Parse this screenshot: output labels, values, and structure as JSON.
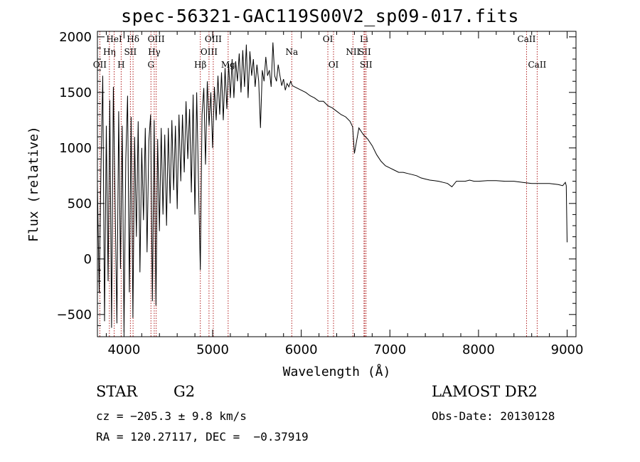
{
  "title": "spec-56321-GAC119S00V2_sp09-017.fits",
  "chart_data": {
    "type": "line",
    "xlabel": "Wavelength (Å)",
    "ylabel": "Flux (relative)",
    "xlim": [
      3700,
      9100
    ],
    "ylim": [
      -700,
      2050
    ],
    "xticks": [
      4000,
      5000,
      6000,
      7000,
      8000,
      9000
    ],
    "yticks": [
      -500,
      0,
      500,
      1000,
      1500,
      2000
    ],
    "grid": false,
    "line_color": "#000000",
    "marker_color": "#b22222",
    "series": [
      {
        "x": [
          3700,
          3720,
          3740,
          3760,
          3780,
          3800,
          3820,
          3840,
          3860,
          3880,
          3900,
          3920,
          3940,
          3960,
          3980,
          4000,
          4020,
          4040,
          4060,
          4080,
          4100,
          4120,
          4140,
          4160,
          4180,
          4200,
          4220,
          4240,
          4260,
          4280,
          4300,
          4320,
          4340,
          4360,
          4380,
          4400,
          4420,
          4440,
          4460,
          4480,
          4500,
          4520,
          4540,
          4560,
          4580,
          4600,
          4620,
          4640,
          4660,
          4680,
          4700,
          4720,
          4740,
          4760,
          4780,
          4800,
          4820,
          4840,
          4861,
          4880,
          4900,
          4920,
          4940,
          4960,
          4980,
          5000,
          5020,
          5040,
          5060,
          5080,
          5100,
          5120,
          5140,
          5160,
          5180,
          5200,
          5220,
          5240,
          5260,
          5280,
          5300,
          5320,
          5340,
          5360,
          5380,
          5400,
          5420,
          5440,
          5460,
          5480,
          5500,
          5520,
          5540,
          5560,
          5580,
          5600,
          5620,
          5640,
          5660,
          5680,
          5700,
          5720,
          5740,
          5760,
          5780,
          5800,
          5820,
          5840,
          5860,
          5880,
          5900,
          5950,
          6000,
          6050,
          6100,
          6150,
          6200,
          6250,
          6300,
          6350,
          6400,
          6450,
          6500,
          6550,
          6580,
          6600,
          6650,
          6700,
          6750,
          6800,
          6850,
          6900,
          6950,
          7000,
          7050,
          7100,
          7150,
          7200,
          7250,
          7300,
          7350,
          7400,
          7450,
          7500,
          7550,
          7600,
          7650,
          7700,
          7750,
          7800,
          7850,
          7900,
          7950,
          8000,
          8100,
          8200,
          8300,
          8400,
          8500,
          8600,
          8700,
          8800,
          8900,
          8950,
          8980,
          8990,
          9000
        ],
        "y": [
          680,
          -300,
          820,
          1650,
          -560,
          1200,
          -200,
          1430,
          -620,
          1550,
          500,
          -580,
          1330,
          -90,
          1200,
          -660,
          900,
          1470,
          -300,
          1280,
          -530,
          1100,
          200,
          1240,
          -120,
          1000,
          350,
          1180,
          60,
          1060,
          1300,
          -380,
          1250,
          -420,
          1080,
          250,
          1180,
          400,
          1120,
          300,
          1180,
          500,
          1250,
          620,
          1200,
          450,
          1300,
          700,
          1300,
          780,
          1420,
          900,
          1350,
          600,
          1480,
          400,
          1500,
          700,
          -100,
          1300,
          1540,
          850,
          1600,
          1200,
          1500,
          1000,
          1550,
          1250,
          1650,
          1300,
          1680,
          1250,
          1720,
          1350,
          1760,
          1450,
          1800,
          1450,
          1780,
          1600,
          1850,
          1500,
          1880,
          1550,
          1930,
          1450,
          1870,
          1650,
          1800,
          1550,
          1750,
          1600,
          1180,
          1700,
          1600,
          1820,
          1650,
          1700,
          1550,
          1950,
          1650,
          1600,
          1750,
          1650,
          1560,
          1620,
          1520,
          1580,
          1550,
          1600,
          1560,
          1540,
          1520,
          1500,
          1470,
          1450,
          1420,
          1420,
          1380,
          1360,
          1330,
          1300,
          1280,
          1240,
          1190,
          950,
          1180,
          1120,
          1080,
          1020,
          940,
          880,
          840,
          820,
          800,
          780,
          780,
          770,
          760,
          750,
          730,
          720,
          710,
          705,
          700,
          690,
          680,
          650,
          700,
          700,
          700,
          710,
          700,
          700,
          705,
          705,
          700,
          700,
          690,
          680,
          680,
          680,
          670,
          660,
          690,
          660,
          150
        ]
      }
    ],
    "line_markers": [
      {
        "label": "OII",
        "x": 3727,
        "row": 3
      },
      {
        "label": "Hη",
        "x": 3835,
        "row": 2
      },
      {
        "label": "HeI",
        "x": 3889,
        "row": 1
      },
      {
        "label": "H",
        "x": 3968,
        "row": 3
      },
      {
        "label": "Hδ",
        "x": 4102,
        "row": 1
      },
      {
        "label": "SII",
        "x": 4072,
        "row": 2
      },
      {
        "label": "G",
        "x": 4304,
        "row": 3
      },
      {
        "label": "Hγ",
        "x": 4341,
        "row": 2
      },
      {
        "label": "OIII",
        "x": 4363,
        "row": 1
      },
      {
        "label": "Hβ",
        "x": 4861,
        "row": 3
      },
      {
        "label": "OIII",
        "x": 4959,
        "row": 2
      },
      {
        "label": "OIII",
        "x": 5007,
        "row": 1
      },
      {
        "label": "Mg",
        "x": 5175,
        "row": 3
      },
      {
        "label": "Na",
        "x": 5893,
        "row": 2
      },
      {
        "label": "OI",
        "x": 6300,
        "row": 1
      },
      {
        "label": "OI",
        "x": 6364,
        "row": 3
      },
      {
        "label": "NII",
        "x": 6583,
        "row": 2
      },
      {
        "label": "Li",
        "x": 6708,
        "row": 1
      },
      {
        "label": "SII",
        "x": 6716,
        "row": 2
      },
      {
        "label": "SII",
        "x": 6731,
        "row": 3
      },
      {
        "label": "CaII",
        "x": 8542,
        "row": 1
      },
      {
        "label": "CaII",
        "x": 8662,
        "row": 3
      }
    ]
  },
  "info": {
    "class": "STAR",
    "subclass": "G2",
    "survey": "LAMOST DR2",
    "cz": "cz = −205.3 ± 9.8 km/s",
    "obs_date": "Obs-Date: 20130128",
    "coords": "RA = 120.27117, DEC =  −0.37919"
  }
}
